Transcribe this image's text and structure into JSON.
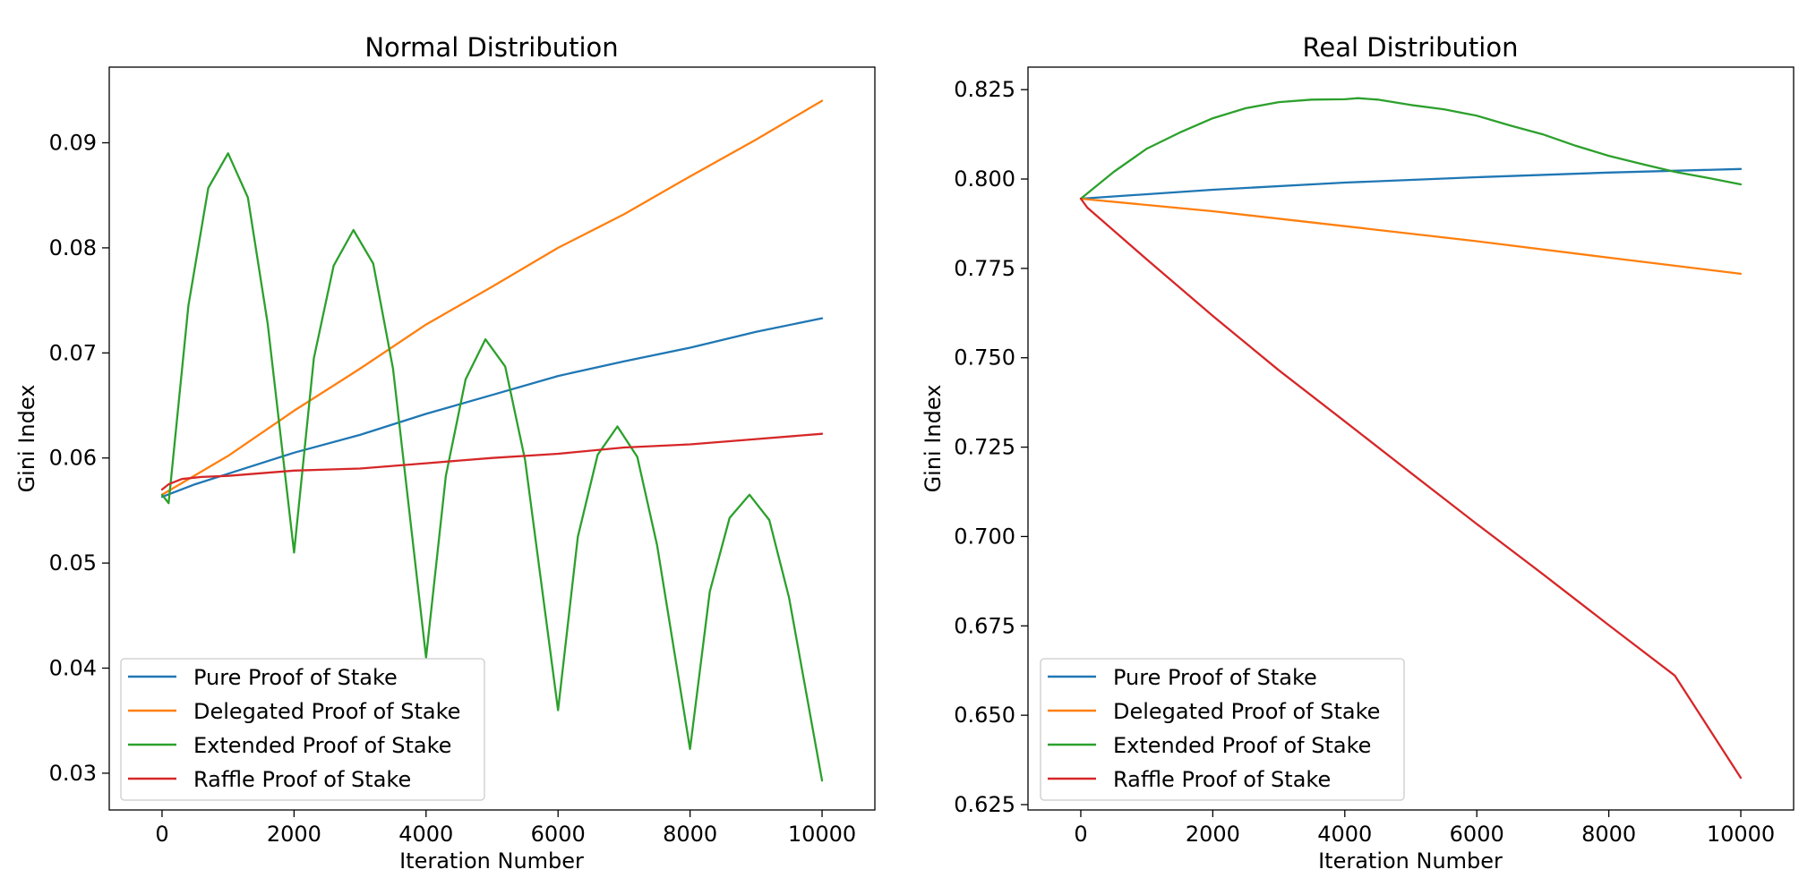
{
  "chart_data": [
    {
      "type": "line",
      "title": "Normal Distribution",
      "xlabel": "Iteration Number",
      "ylabel": "Gini Index",
      "xlim": [
        -800,
        10800
      ],
      "ylim": [
        0.0265,
        0.0972
      ],
      "xticks": [
        0,
        2000,
        4000,
        6000,
        8000,
        10000
      ],
      "xtick_labels": [
        "0",
        "2000",
        "4000",
        "6000",
        "8000",
        "10000"
      ],
      "yticks": [
        0.03,
        0.04,
        0.05,
        0.06,
        0.07,
        0.08,
        0.09
      ],
      "ytick_labels": [
        "0.03",
        "0.04",
        "0.05",
        "0.06",
        "0.07",
        "0.08",
        "0.09"
      ],
      "grid": false,
      "legend_position": "lower-left",
      "series": [
        {
          "name": "Pure Proof of Stake",
          "color": "#1f77b4",
          "x": [
            0,
            500,
            1000,
            2000,
            3000,
            4000,
            5000,
            6000,
            7000,
            8000,
            9000,
            10000
          ],
          "y": [
            0.0563,
            0.0575,
            0.0585,
            0.0605,
            0.0622,
            0.0642,
            0.066,
            0.0678,
            0.0692,
            0.0705,
            0.072,
            0.0733
          ]
        },
        {
          "name": "Delegated Proof of Stake",
          "color": "#ff7f0e",
          "x": [
            0,
            1000,
            2000,
            3000,
            4000,
            5000,
            6000,
            7000,
            8000,
            9000,
            10000
          ],
          "y": [
            0.0565,
            0.0602,
            0.0645,
            0.0685,
            0.0727,
            0.0763,
            0.08,
            0.0832,
            0.0868,
            0.0903,
            0.094
          ]
        },
        {
          "name": "Extended Proof of Stake",
          "color": "#2ca02c",
          "x": [
            0,
            100,
            400,
            700,
            1000,
            1300,
            1600,
            2000,
            2300,
            2600,
            2900,
            3200,
            3500,
            4000,
            4300,
            4600,
            4900,
            5200,
            5500,
            6000,
            6300,
            6600,
            6900,
            7200,
            7500,
            8000,
            8300,
            8600,
            8900,
            9200,
            9500,
            10000
          ],
          "y": [
            0.0565,
            0.0557,
            0.0745,
            0.0857,
            0.089,
            0.0848,
            0.0728,
            0.051,
            0.0695,
            0.0783,
            0.0817,
            0.0785,
            0.0685,
            0.041,
            0.0583,
            0.0675,
            0.0713,
            0.0687,
            0.0598,
            0.036,
            0.0525,
            0.0603,
            0.063,
            0.0601,
            0.0517,
            0.0323,
            0.0473,
            0.0543,
            0.0565,
            0.0541,
            0.0467,
            0.0293
          ]
        },
        {
          "name": "Raffle Proof of Stake",
          "color": "#d62728",
          "x": [
            0,
            100,
            300,
            600,
            1000,
            2000,
            3000,
            4000,
            5000,
            6000,
            7000,
            8000,
            9000,
            10000
          ],
          "y": [
            0.057,
            0.0575,
            0.058,
            0.0582,
            0.0583,
            0.0588,
            0.059,
            0.0595,
            0.06,
            0.0604,
            0.061,
            0.0613,
            0.0618,
            0.0623
          ]
        }
      ]
    },
    {
      "type": "line",
      "title": "Real Distribution",
      "xlabel": "Iteration Number",
      "ylabel": "Gini Index",
      "xlim": [
        -800,
        10800
      ],
      "ylim": [
        0.6235,
        0.8313
      ],
      "xticks": [
        0,
        2000,
        4000,
        6000,
        8000,
        10000
      ],
      "xtick_labels": [
        "0",
        "2000",
        "4000",
        "6000",
        "8000",
        "10000"
      ],
      "yticks": [
        0.625,
        0.65,
        0.675,
        0.7,
        0.725,
        0.75,
        0.775,
        0.8,
        0.825
      ],
      "ytick_labels": [
        "0.625",
        "0.650",
        "0.675",
        "0.700",
        "0.725",
        "0.750",
        "0.775",
        "0.800",
        "0.825"
      ],
      "grid": false,
      "legend_position": "lower-left",
      "series": [
        {
          "name": "Pure Proof of Stake",
          "color": "#1f77b4",
          "x": [
            0,
            2000,
            4000,
            6000,
            8000,
            10000
          ],
          "y": [
            0.7945,
            0.797,
            0.799,
            0.8005,
            0.8018,
            0.8028
          ]
        },
        {
          "name": "Delegated Proof of Stake",
          "color": "#ff7f0e",
          "x": [
            0,
            2000,
            4000,
            6000,
            8000,
            10000
          ],
          "y": [
            0.7945,
            0.791,
            0.7868,
            0.7826,
            0.778,
            0.7735
          ]
        },
        {
          "name": "Extended Proof of Stake",
          "color": "#2ca02c",
          "x": [
            0,
            500,
            1000,
            1500,
            2000,
            2500,
            3000,
            3500,
            4000,
            4200,
            4500,
            5000,
            5500,
            6000,
            6500,
            7000,
            7500,
            8000,
            8500,
            9000,
            9500,
            10000
          ],
          "y": [
            0.7945,
            0.802,
            0.8085,
            0.813,
            0.817,
            0.8198,
            0.8215,
            0.8222,
            0.8223,
            0.8226,
            0.8222,
            0.8207,
            0.8195,
            0.8177,
            0.815,
            0.8125,
            0.8093,
            0.8065,
            0.8042,
            0.802,
            0.8003,
            0.7985
          ]
        },
        {
          "name": "Raffle Proof of Stake",
          "color": "#d62728",
          "x": [
            0,
            100,
            1000,
            2000,
            3000,
            4000,
            5000,
            6000,
            7000,
            8000,
            9000,
            10000
          ],
          "y": [
            0.7945,
            0.792,
            0.7775,
            0.7617,
            0.7465,
            0.7322,
            0.7178,
            0.7035,
            0.6895,
            0.6752,
            0.6611,
            0.6325
          ]
        }
      ]
    }
  ]
}
